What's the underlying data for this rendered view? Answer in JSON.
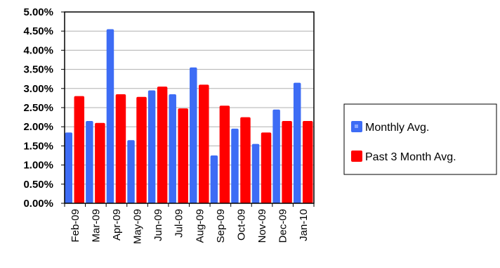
{
  "chart_data": {
    "type": "bar",
    "categories": [
      "Feb-09",
      "Mar-09",
      "Apr-09",
      "May-09",
      "Jun-09",
      "Jul-09",
      "Aug-09",
      "Sep-09",
      "Oct-09",
      "Nov-09",
      "Dec-09",
      "Jan-10"
    ],
    "series": [
      {
        "name": "Monthly Avg.",
        "color": "#3d6cf5",
        "values": [
          1.85,
          2.15,
          4.55,
          1.65,
          2.95,
          2.85,
          3.55,
          1.25,
          1.95,
          1.55,
          2.45,
          3.15
        ]
      },
      {
        "name": "Past 3 Month Avg.",
        "color": "#ff0000",
        "values": [
          2.8,
          2.1,
          2.85,
          2.78,
          3.05,
          2.48,
          3.1,
          2.55,
          2.25,
          1.85,
          2.15,
          2.15
        ]
      }
    ],
    "yticks": [
      "0.00%",
      "0.50%",
      "1.00%",
      "1.50%",
      "2.00%",
      "2.50%",
      "3.00%",
      "3.50%",
      "4.00%",
      "4.50%",
      "5.00%"
    ],
    "ylim": [
      0,
      5
    ],
    "grid": true,
    "legend_position": "right",
    "title": "",
    "xlabel": "",
    "ylabel": ""
  }
}
